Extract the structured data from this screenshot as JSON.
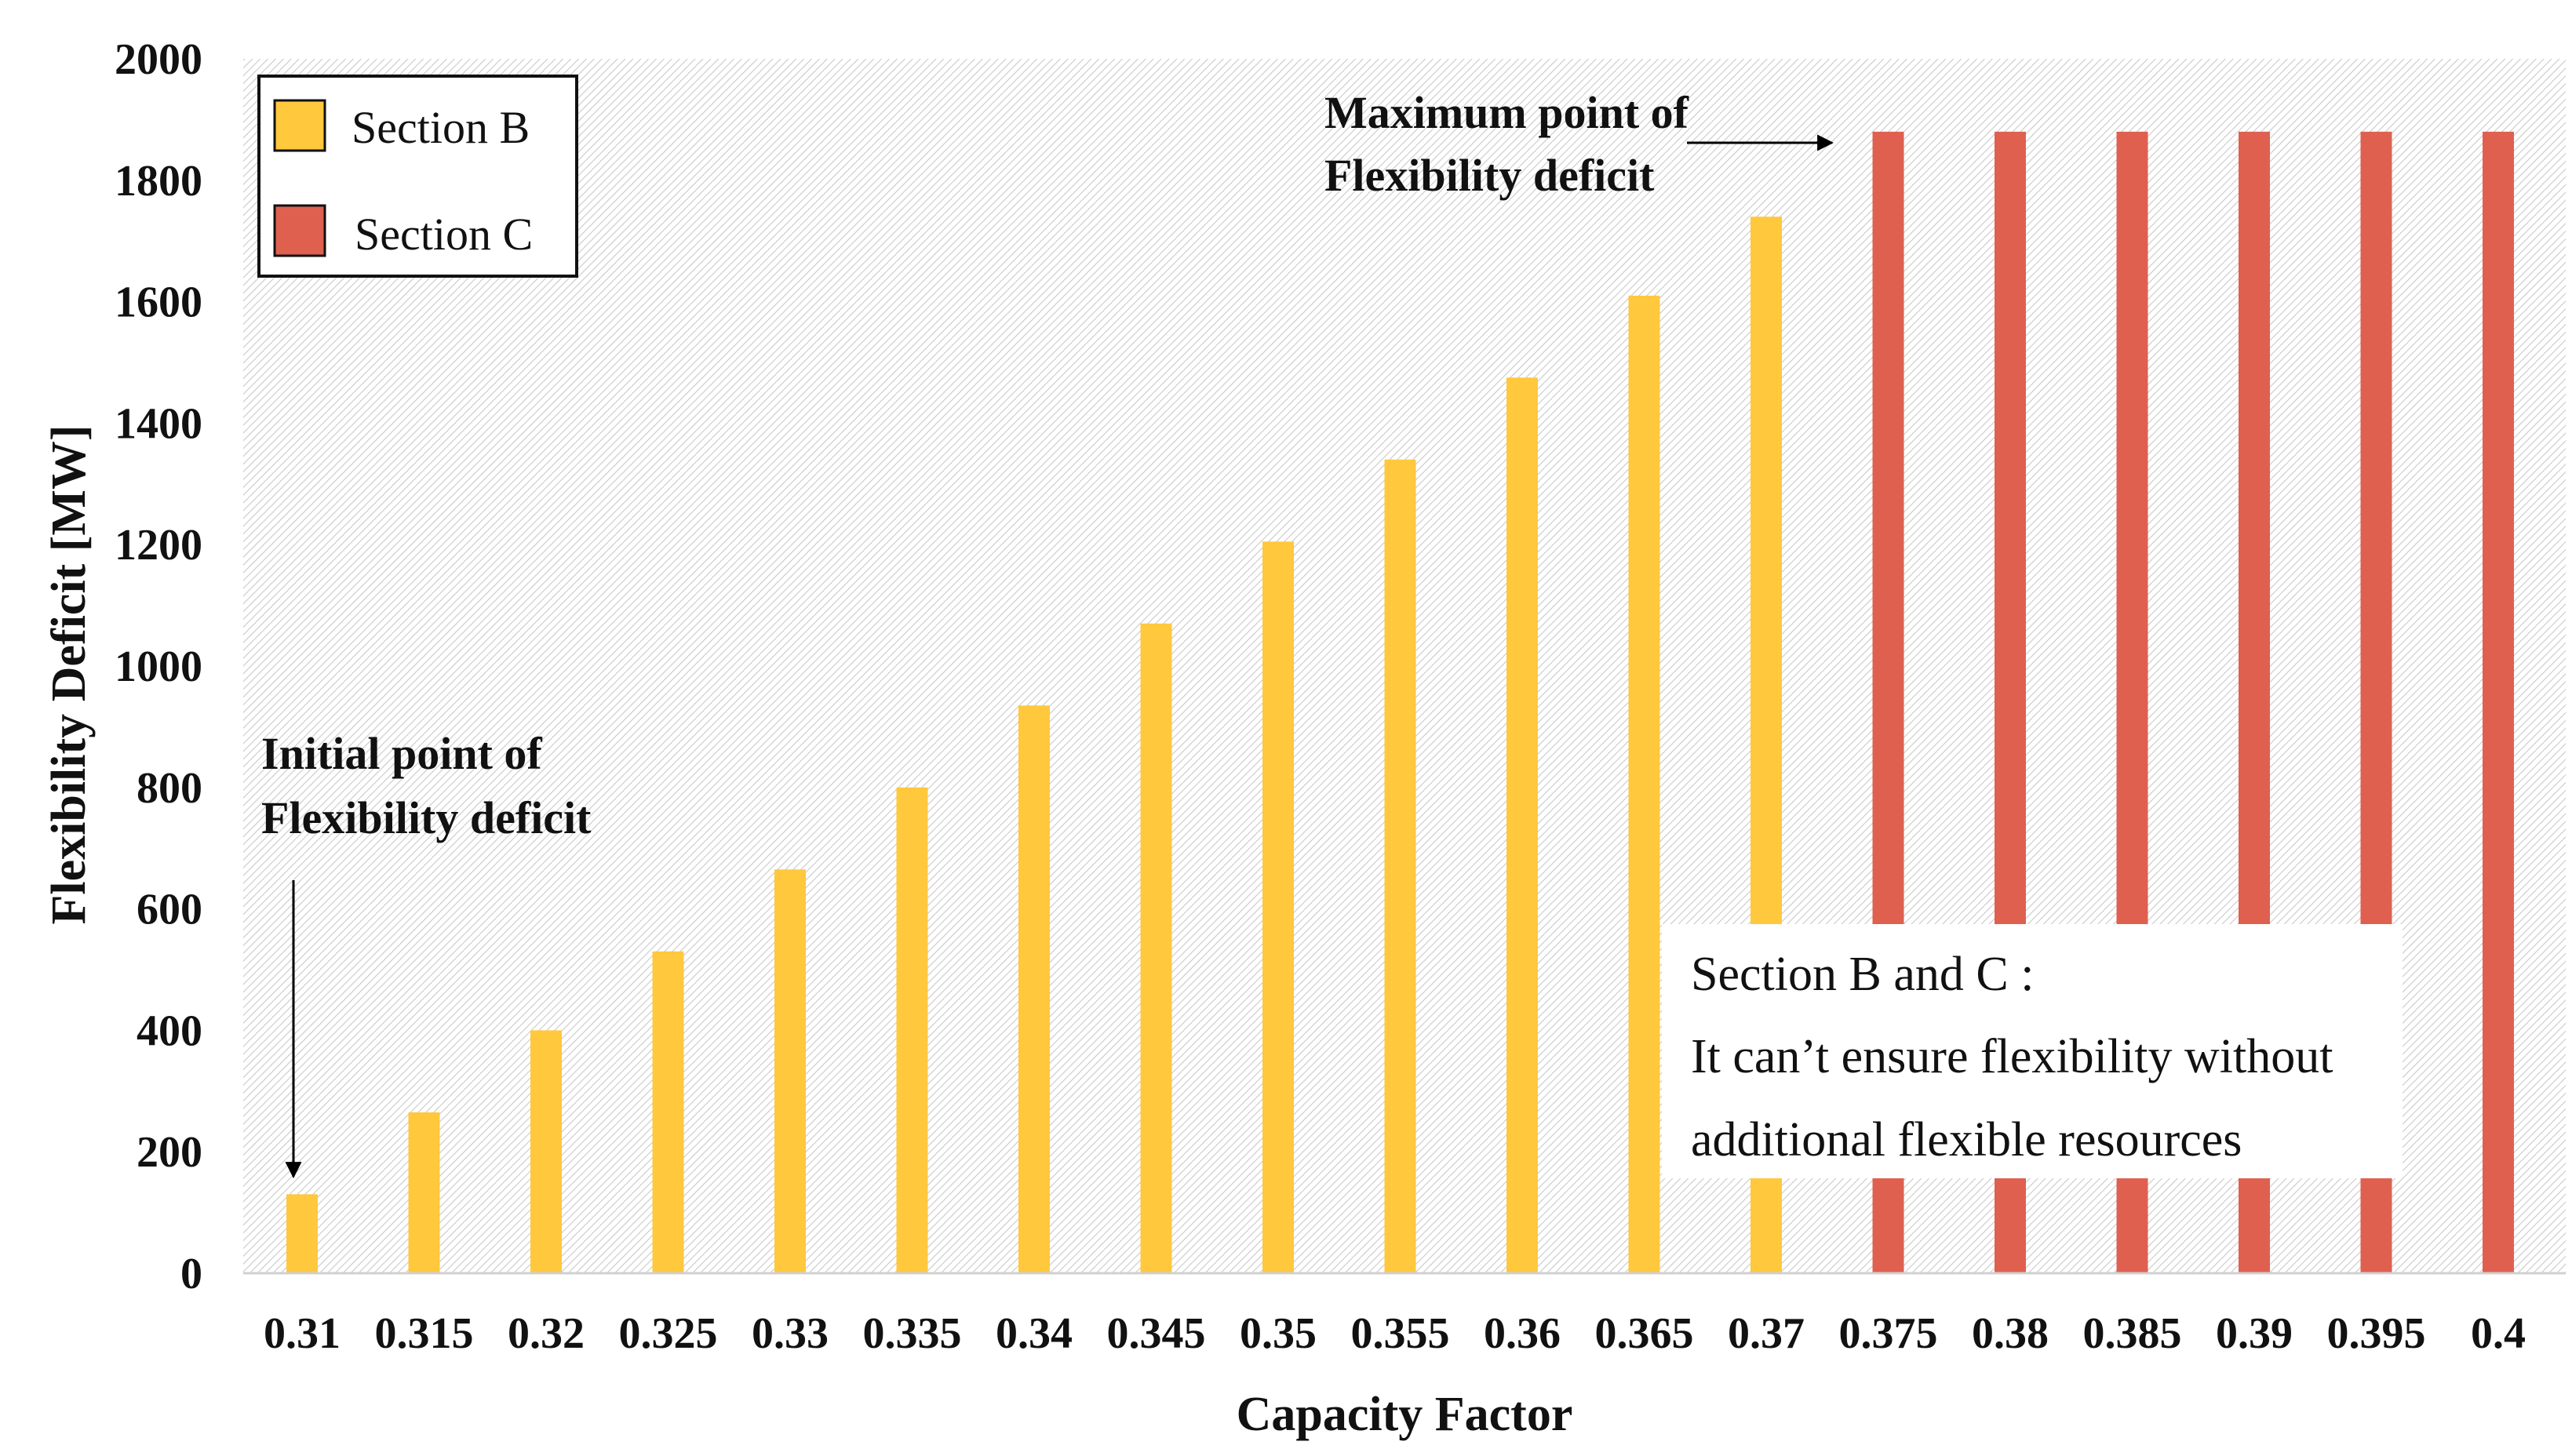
{
  "chart_data": {
    "type": "bar",
    "title": "",
    "xlabel": "Capacity Factor",
    "ylabel": "Flexibility Deficit [MW]",
    "ylim": [
      0,
      2000
    ],
    "yticks": [
      "0",
      "200",
      "400",
      "600",
      "800",
      "1000",
      "1200",
      "1400",
      "1600",
      "1800",
      "2000"
    ],
    "categories": [
      "0.31",
      "0.315",
      "0.32",
      "0.325",
      "0.33",
      "0.335",
      "0.34",
      "0.345",
      "0.35",
      "0.355",
      "0.36",
      "0.365",
      "0.37",
      "0.375",
      "0.38",
      "0.385",
      "0.39",
      "0.395",
      "0.4"
    ],
    "values": [
      130,
      265,
      400,
      530,
      665,
      800,
      935,
      1070,
      1205,
      1340,
      1475,
      1610,
      1740,
      1880,
      1880,
      1880,
      1880,
      1880,
      1880
    ],
    "sections": [
      "B",
      "B",
      "B",
      "B",
      "B",
      "B",
      "B",
      "B",
      "B",
      "B",
      "B",
      "B",
      "B",
      "C",
      "C",
      "C",
      "C",
      "C",
      "C"
    ],
    "series": [
      {
        "name": "Section B",
        "key": "B",
        "color": "#FFC83D"
      },
      {
        "name": "Section C",
        "key": "C",
        "color": "#E06050"
      }
    ],
    "legend_position": "top-left",
    "annotations": {
      "initial": [
        "Initial point of",
        "Flexibility deficit"
      ],
      "maximum": [
        "Maximum point of",
        "Flexibility deficit"
      ],
      "note": [
        "Section B and C :",
        "It can’t ensure flexibility  without",
        "additional flexible resources"
      ]
    }
  }
}
